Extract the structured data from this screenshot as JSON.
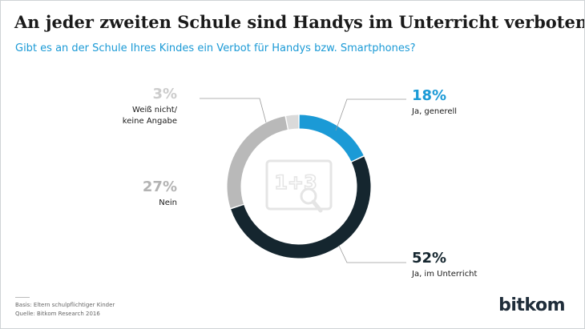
{
  "title": "An jeder zweiten Schule sind Handys im Unterricht verboten",
  "subtitle": "Gibt es an der Schule Ihres Kindes ein Verbot für Handys bzw. Smartphones?",
  "chart_data": {
    "type": "pie",
    "variant": "donut",
    "categories": [
      "Ja, generell",
      "Ja, im Unterricht",
      "Nein",
      "Weiß nicht/ keine Angabe"
    ],
    "values": [
      18,
      52,
      27,
      3
    ],
    "value_labels": [
      "18%",
      "52%",
      "27%",
      "3%"
    ],
    "label_lines": [
      [
        "Ja, generell"
      ],
      [
        "Ja, im Unterricht"
      ],
      [
        "Nein"
      ],
      [
        "Weiß nicht/",
        "keine Angabe"
      ]
    ],
    "colors": [
      "#1b9ad6",
      "#15262f",
      "#b9b9b9",
      "#dadada"
    ],
    "value_label_colors": [
      "#1b9ad6",
      "#15262f",
      "#b3b3b3",
      "#cccccc"
    ],
    "start_angle_deg": 0,
    "direction": "clockwise",
    "center_icon": "math-board-icon",
    "center_icon_text": "1+3"
  },
  "footnotes": {
    "basis": "Basis: Eltern schulpflichtiger Kinder",
    "source": "Quelle: Bitkom Research 2016"
  },
  "logo_text": "bitkom"
}
